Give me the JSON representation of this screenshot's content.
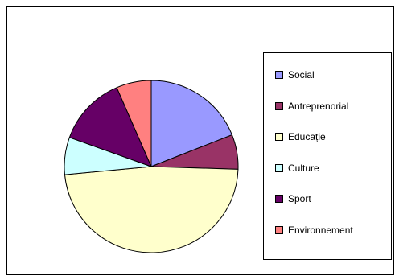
{
  "chart_data": {
    "type": "pie",
    "title": "",
    "categories": [
      "Social",
      "Antreprenorial",
      "Educație",
      "Culture",
      "Sport",
      "Environnement"
    ],
    "values": [
      19,
      6.5,
      48,
      7,
      13,
      6.5
    ],
    "colors": [
      "#9999ff",
      "#993366",
      "#ffffcc",
      "#ccffff",
      "#660066",
      "#ff8080"
    ],
    "legend_position": "right",
    "start_angle_deg": 90,
    "direction": "clockwise"
  }
}
